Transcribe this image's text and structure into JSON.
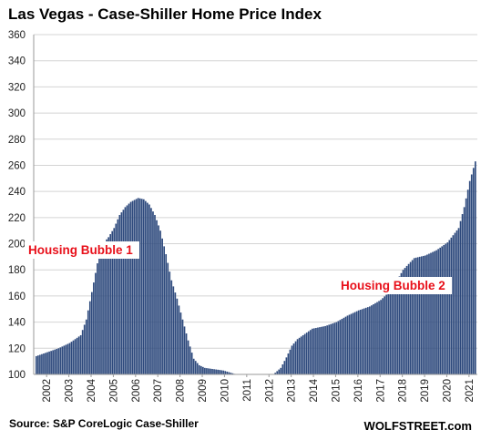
{
  "chart_data": {
    "type": "bar",
    "title": "Las Vegas - Case-Shiller Home Price Index",
    "xlabel": "",
    "ylabel": "",
    "ylim": [
      100,
      360
    ],
    "yticks": [
      100,
      120,
      140,
      160,
      180,
      200,
      220,
      240,
      260,
      280,
      300,
      320,
      340,
      360
    ],
    "xticks": [
      "2002",
      "2003",
      "2004",
      "2005",
      "2006",
      "2007",
      "2008",
      "2009",
      "2010",
      "2011",
      "2012",
      "2013",
      "2014",
      "2015",
      "2016",
      "2017",
      "2018",
      "2019",
      "2020",
      "2021"
    ],
    "frequency": "monthly",
    "start": "2002-01",
    "end": "2021-10",
    "grid": "horizontal",
    "bar_color": "#2e4a7d",
    "annotations": [
      "Housing Bubble 1",
      "Housing Bubble 2"
    ],
    "annotation_color": "#e8101a",
    "anchors": [
      [
        "2002-01",
        114
      ],
      [
        "2002-07",
        117
      ],
      [
        "2003-01",
        120
      ],
      [
        "2003-07",
        124
      ],
      [
        "2004-01",
        130
      ],
      [
        "2004-04",
        142
      ],
      [
        "2004-07",
        163
      ],
      [
        "2004-10",
        185
      ],
      [
        "2005-01",
        200
      ],
      [
        "2005-04",
        205
      ],
      [
        "2005-07",
        212
      ],
      [
        "2005-10",
        222
      ],
      [
        "2006-01",
        228
      ],
      [
        "2006-04",
        232
      ],
      [
        "2006-08",
        235
      ],
      [
        "2006-11",
        234
      ],
      [
        "2007-02",
        230
      ],
      [
        "2007-05",
        222
      ],
      [
        "2007-08",
        210
      ],
      [
        "2007-11",
        192
      ],
      [
        "2008-02",
        172
      ],
      [
        "2008-05",
        158
      ],
      [
        "2008-08",
        142
      ],
      [
        "2008-11",
        126
      ],
      [
        "2009-02",
        112
      ],
      [
        "2009-05",
        107
      ],
      [
        "2009-08",
        105
      ],
      [
        "2010-01",
        104
      ],
      [
        "2010-06",
        103
      ],
      [
        "2011-01",
        100
      ],
      [
        "2012-01",
        97
      ],
      [
        "2012-06",
        97
      ],
      [
        "2012-09",
        100
      ],
      [
        "2013-01",
        105
      ],
      [
        "2013-04",
        113
      ],
      [
        "2013-07",
        122
      ],
      [
        "2013-10",
        127
      ],
      [
        "2014-01",
        130
      ],
      [
        "2014-06",
        135
      ],
      [
        "2015-01",
        137
      ],
      [
        "2015-07",
        140
      ],
      [
        "2016-01",
        145
      ],
      [
        "2016-07",
        149
      ],
      [
        "2017-01",
        152
      ],
      [
        "2017-07",
        157
      ],
      [
        "2018-01",
        165
      ],
      [
        "2018-07",
        180
      ],
      [
        "2019-01",
        189
      ],
      [
        "2019-07",
        191
      ],
      [
        "2020-01",
        195
      ],
      [
        "2020-07",
        201
      ],
      [
        "2021-01",
        212
      ],
      [
        "2021-04",
        228
      ],
      [
        "2021-07",
        248
      ],
      [
        "2021-10",
        263
      ]
    ]
  },
  "footer": {
    "source": "Source: S&P CoreLogic Case-Shiller",
    "brand": "WOLFSTREET.com"
  }
}
